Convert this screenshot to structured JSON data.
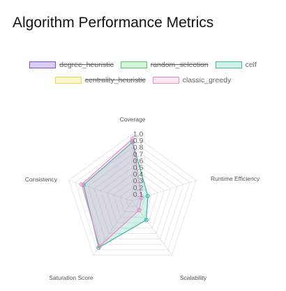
{
  "chart_data": {
    "type": "radar",
    "title": "Algorithm Performance Metrics",
    "axes": [
      "Coverage",
      "Runtime Efficiency",
      "Scalability",
      "Saturation Score",
      "Consistency"
    ],
    "rmin": 0,
    "rmax": 1.0,
    "ticks": [
      "0.1",
      "0.2",
      "0.3",
      "0.4",
      "0.5",
      "0.6",
      "0.7",
      "0.8",
      "0.9",
      "1.0"
    ],
    "legend_position": "top",
    "series": [
      {
        "name": "degree_heuristic",
        "hidden": true,
        "border": "#7d4fc4",
        "fill": "#d9cdf3",
        "values": []
      },
      {
        "name": "random_selection",
        "hidden": true,
        "border": "#5cc46d",
        "fill": "#d4f3d8",
        "values": []
      },
      {
        "name": "celf",
        "hidden": false,
        "border": "#3cb9a3",
        "fill": "rgba(60,185,163,0.22)",
        "values": [
          0.88,
          0.24,
          0.35,
          0.86,
          0.77
        ]
      },
      {
        "name": "centrality_heuristic",
        "hidden": true,
        "border": "#e9d84a",
        "fill": "#fdf7cf",
        "values": []
      },
      {
        "name": "classic_greedy",
        "hidden": false,
        "border": "#e98fc8",
        "fill": "rgba(233,143,200,0.22)",
        "values": [
          0.93,
          0.14,
          0.17,
          0.84,
          0.8
        ]
      }
    ]
  }
}
